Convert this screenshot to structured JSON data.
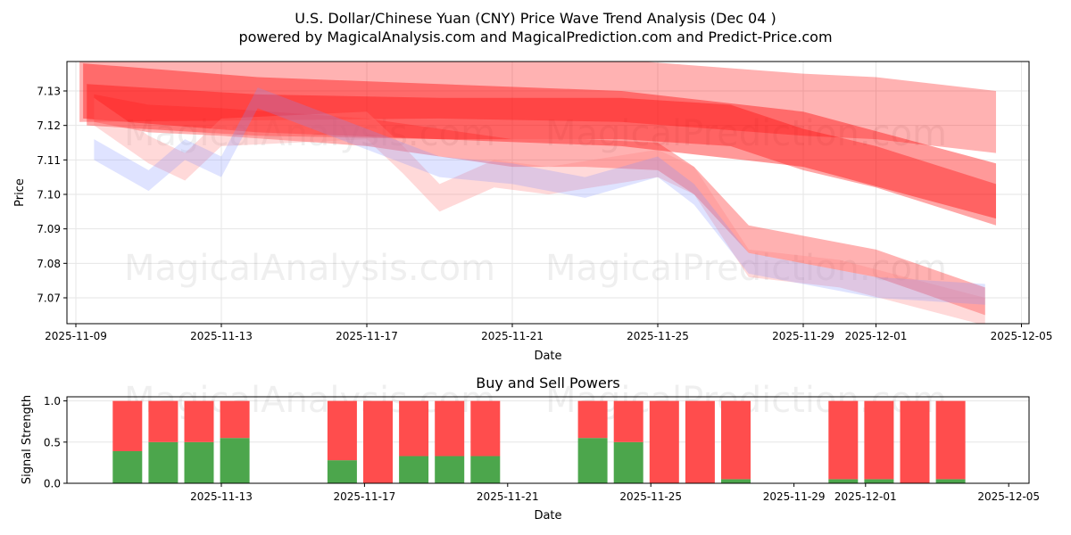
{
  "title": "U.S. Dollar/Chinese Yuan (CNY) Price Wave Trend Analysis (Dec 04 )",
  "subtitle": "powered by MagicalAnalysis.com and MagicalPrediction.com and Predict-Price.com",
  "watermarks": [
    "MagicalAnalysis.com",
    "MagicalPrediction.com"
  ],
  "colors": {
    "buy": "#4ca64c",
    "sell": "#ff4d4d",
    "band_red": "#ff0000",
    "band_pink": "#ffaaaa",
    "band_blue": "#aab4ff"
  },
  "chart_data": [
    {
      "type": "area",
      "title": "",
      "xlabel": "Date",
      "ylabel": "Price",
      "x_start_date": "2025-11-09",
      "xlim_days": [
        -0.3,
        25.8
      ],
      "ylim": [
        7.0615,
        7.1385
      ],
      "yticks": [
        "7.07",
        "7.08",
        "7.09",
        "7.10",
        "7.11",
        "7.12",
        "7.13"
      ],
      "xticks": [
        {
          "day": 0,
          "label": "2025-11-09"
        },
        {
          "day": 4,
          "label": "2025-11-13"
        },
        {
          "day": 8,
          "label": "2025-11-17"
        },
        {
          "day": 12,
          "label": "2025-11-21"
        },
        {
          "day": 16,
          "label": "2025-11-25"
        },
        {
          "day": 20,
          "label": "2025-11-29"
        },
        {
          "day": 22,
          "label": "2025-12-01"
        },
        {
          "day": 26,
          "label": "2025-12-05"
        }
      ],
      "grid": true,
      "bands": [
        {
          "name": "wave-band-1",
          "color": "#ff0000",
          "opacity": 0.3,
          "half_width": 0.009,
          "points": [
            [
              0.1,
              7.13
            ],
            [
              10,
              7.131
            ],
            [
              15,
              7.13
            ],
            [
              20,
              7.126
            ],
            [
              22,
              7.125
            ],
            [
              25.3,
              7.121
            ]
          ]
        },
        {
          "name": "wave-band-2",
          "color": "#ff0000",
          "opacity": 0.4,
          "half_width": 0.008,
          "points": [
            [
              0.2,
              7.13
            ],
            [
              5,
              7.126
            ],
            [
              10,
              7.124
            ],
            [
              15,
              7.122
            ],
            [
              20,
              7.116
            ],
            [
              25.3,
              7.101
            ]
          ]
        },
        {
          "name": "wave-band-3",
          "color": "#ff0000",
          "opacity": 0.35,
          "half_width": 0.006,
          "points": [
            [
              0.3,
              7.126
            ],
            [
              5,
              7.123
            ],
            [
              10,
              7.122
            ],
            [
              15,
              7.122
            ],
            [
              18,
              7.12
            ],
            [
              20,
              7.113
            ],
            [
              22,
              7.108
            ],
            [
              25.3,
              7.097
            ]
          ]
        },
        {
          "name": "wave-band-4",
          "color": "#ff2020",
          "opacity": 0.35,
          "half_width": 0.004,
          "points": [
            [
              0.5,
              7.125
            ],
            [
              2,
              7.122
            ],
            [
              4,
              7.121
            ],
            [
              8,
              7.118
            ],
            [
              12,
              7.112
            ],
            [
              14,
              7.112
            ],
            [
              16,
              7.111
            ],
            [
              17,
              7.104
            ],
            [
              18.5,
              7.087
            ],
            [
              22,
              7.08
            ],
            [
              25,
              7.069
            ]
          ]
        },
        {
          "name": "wave-band-5",
          "color": "#ff8080",
          "opacity": 0.3,
          "half_width": 0.004,
          "points": [
            [
              0.5,
              7.124
            ],
            [
              2,
              7.113
            ],
            [
              3,
              7.108
            ],
            [
              4,
              7.118
            ],
            [
              8,
              7.12
            ],
            [
              9,
              7.11
            ],
            [
              10,
              7.099
            ],
            [
              11.5,
              7.106
            ],
            [
              13,
              7.104
            ],
            [
              16,
              7.109
            ],
            [
              17,
              7.104
            ],
            [
              18.5,
              7.08
            ],
            [
              21,
              7.077
            ],
            [
              25,
              7.066
            ]
          ]
        },
        {
          "name": "wave-band-6",
          "color": "#8090ff",
          "opacity": 0.25,
          "half_width": 0.003,
          "points": [
            [
              0.5,
              7.113
            ],
            [
              2,
              7.104
            ],
            [
              3,
              7.113
            ],
            [
              4,
              7.108
            ],
            [
              5,
              7.128
            ],
            [
              8,
              7.116
            ],
            [
              10,
              7.108
            ],
            [
              12,
              7.106
            ],
            [
              14,
              7.102
            ],
            [
              16,
              7.108
            ],
            [
              17,
              7.1
            ],
            [
              18.5,
              7.08
            ],
            [
              22,
              7.073
            ],
            [
              25,
              7.071
            ]
          ]
        }
      ]
    },
    {
      "type": "bar",
      "title": "Buy and Sell Powers",
      "xlabel": "Date",
      "ylabel": "Signal Strength",
      "ylim": [
        0,
        1.05
      ],
      "yticks": [
        "0.0",
        "0.5",
        "1.0"
      ],
      "xticks": [
        {
          "day": 4,
          "label": "2025-11-13"
        },
        {
          "day": 8,
          "label": "2025-11-17"
        },
        {
          "day": 12,
          "label": "2025-11-21"
        },
        {
          "day": 16,
          "label": "2025-11-25"
        },
        {
          "day": 20,
          "label": "2025-11-29"
        },
        {
          "day": 22,
          "label": "2025-12-01"
        },
        {
          "day": 26,
          "label": "2025-12-05"
        }
      ],
      "categories": [
        "2025-11-11",
        "2025-11-12",
        "2025-11-13",
        "2025-11-14",
        "2025-11-17",
        "2025-11-18",
        "2025-11-19",
        "2025-11-20",
        "2025-11-21",
        "2025-11-24",
        "2025-11-25",
        "2025-11-26",
        "2025-11-27",
        "2025-11-28",
        "2025-12-01",
        "2025-12-02",
        "2025-12-03",
        "2025-12-04"
      ],
      "category_days": [
        2,
        3,
        4,
        5,
        8,
        9,
        10,
        11,
        12,
        15,
        16,
        17,
        18,
        19,
        22,
        23,
        24,
        25
      ],
      "series": [
        {
          "name": "Buy",
          "values": [
            0.39,
            0.5,
            0.5,
            0.55,
            0.28,
            0,
            0.33,
            0.33,
            0.33,
            0.55,
            0.5,
            0,
            0,
            0.05,
            0.05,
            0.05,
            0,
            0.05
          ]
        },
        {
          "name": "Sell",
          "values": [
            0.61,
            0.5,
            0.5,
            0.45,
            0.72,
            1,
            0.67,
            0.67,
            0.67,
            0.45,
            0.5,
            1,
            1,
            0.95,
            0.95,
            0.95,
            1,
            0.95
          ]
        }
      ]
    }
  ]
}
